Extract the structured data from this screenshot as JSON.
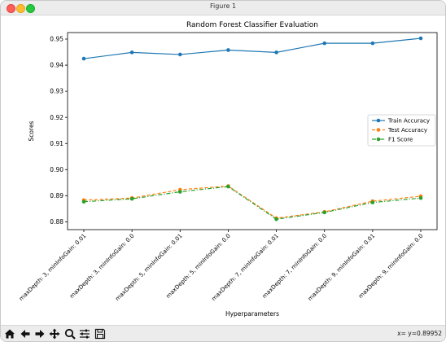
{
  "window": {
    "title": "Figure 1"
  },
  "toolbar": {
    "buttons": [
      "home-icon",
      "back-arrow-icon",
      "forward-arrow-icon",
      "pan-icon",
      "zoom-icon",
      "configure-subplots-icon",
      "save-icon"
    ],
    "coords_text": "x= y=0.89952"
  },
  "chart_data": {
    "type": "line",
    "title": "Random Forest Classifier Evaluation",
    "xlabel": "Hyperparameters",
    "ylabel": "Scores",
    "categories": [
      "maxDepth: 3, minInfoGain: 0.01",
      "maxDepth: 3, minInfoGain: 0.0",
      "maxDepth: 5, minInfoGain: 0.01",
      "maxDepth: 5, minInfoGain: 0.0",
      "maxDepth: 7, minInfoGain: 0.01",
      "maxDepth: 7, minInfoGain: 0.0",
      "maxDepth: 9, minInfoGain: 0.01",
      "maxDepth: 9, minInfoGain: 0.0"
    ],
    "ylim": [
      0.877,
      0.9525
    ],
    "yticks": [
      "0.88",
      "0.89",
      "0.90",
      "0.91",
      "0.92",
      "0.93",
      "0.94",
      "0.95"
    ],
    "grid": false,
    "legend_position": "right",
    "series": [
      {
        "name": "Train Accuracy",
        "color": "#1f77b4",
        "linestyle": "solid",
        "values": [
          0.9425,
          0.9449,
          0.9441,
          0.9458,
          0.9449,
          0.9484,
          0.9484,
          0.9503
        ]
      },
      {
        "name": "Test Accuracy",
        "color": "#ff7f0e",
        "linestyle": "dashed",
        "values": [
          0.8883,
          0.8891,
          0.8923,
          0.8937,
          0.8814,
          0.8838,
          0.8879,
          0.8898
        ]
      },
      {
        "name": "F1 Score",
        "color": "#2ca02c",
        "linestyle": "dashdot",
        "values": [
          0.8877,
          0.8888,
          0.8915,
          0.8935,
          0.881,
          0.8836,
          0.8874,
          0.8891
        ]
      }
    ]
  }
}
